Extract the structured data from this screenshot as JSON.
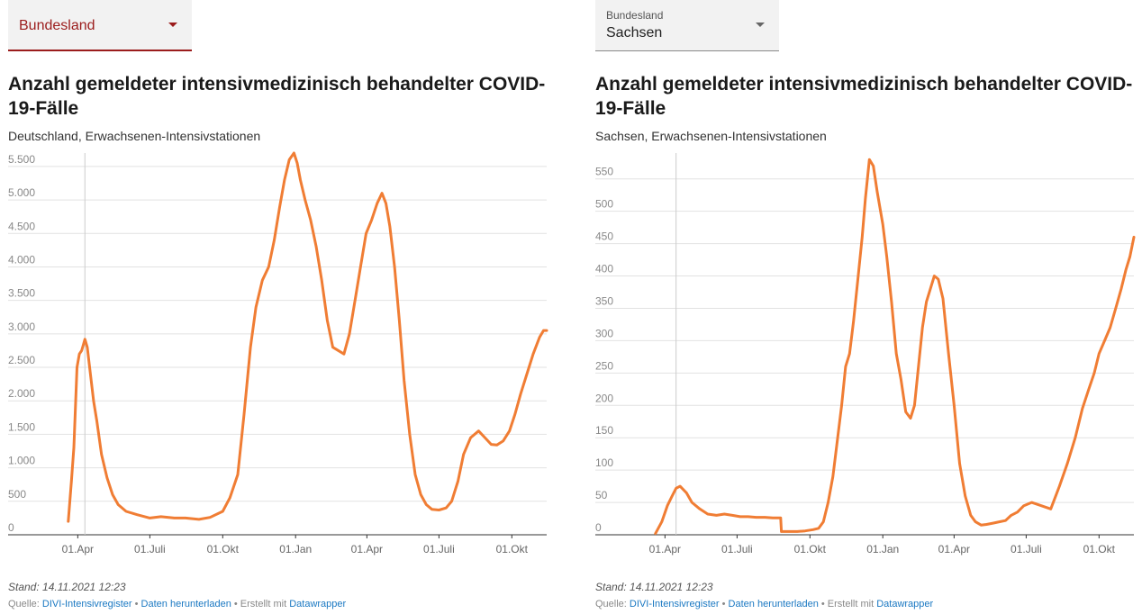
{
  "panels": [
    {
      "dropdown": {
        "label": "Bundesland",
        "value": ""
      },
      "title": "Anzahl gemeldeter intensivmedizinisch behandelter COVID-19-Fälle",
      "subtitle": "Deutschland, Erwachsenen-Intensivstationen",
      "footer": {
        "stand": "Stand: 14.11.2021 12:23",
        "source_prefix": "Quelle: ",
        "source_link": "DIVI-Intensivregister",
        "sep1": " • ",
        "download_link": "Daten herunterladen",
        "sep2": " • Erstellt mit ",
        "tool_link": "Datawrapper"
      }
    },
    {
      "dropdown": {
        "label": "Bundesland",
        "value": "Sachsen"
      },
      "title": "Anzahl gemeldeter intensivmedizinisch behandelter COVID-19-Fälle",
      "subtitle": "Sachsen, Erwachsenen-Intensivstationen",
      "footer": {
        "stand": "Stand: 14.11.2021 12:23",
        "source_prefix": "Quelle: ",
        "source_link": "DIVI-Intensivregister",
        "sep1": " • ",
        "download_link": "Daten herunterladen",
        "sep2": " • Erstellt mit ",
        "tool_link": "Datawrapper"
      }
    }
  ],
  "chart_data": [
    {
      "type": "line",
      "line_color": "#f07d34",
      "x_axis_type": "date",
      "xlim": [
        "2020-03-10",
        "2021-11-14"
      ],
      "ylim": [
        0,
        5700
      ],
      "y_ticks": [
        0,
        500,
        1000,
        1500,
        2000,
        2500,
        3000,
        3500,
        4000,
        4500,
        5000,
        5500
      ],
      "y_tick_labels": [
        "0",
        "500",
        "1.000",
        "1.500",
        "2.000",
        "2.500",
        "3.000",
        "3.500",
        "4.000",
        "4.500",
        "5.000",
        "5.500"
      ],
      "x_ticks": [
        "2020-04-01",
        "2020-07-01",
        "2020-10-01",
        "2021-01-01",
        "2021-04-01",
        "2021-07-01",
        "2021-10-01"
      ],
      "x_tick_labels": [
        "01.Apr",
        "01.Juli",
        "01.Okt",
        "01.Jan",
        "01.Apr",
        "01.Juli",
        "01.Okt"
      ],
      "reference_line_x": "2020-04-10",
      "grid": true,
      "series": [
        {
          "x": [
            "2020-03-20",
            "2020-03-24",
            "2020-03-27",
            "2020-03-31",
            "2020-04-03",
            "2020-04-06",
            "2020-04-10",
            "2020-04-13",
            "2020-04-17",
            "2020-04-21",
            "2020-04-25",
            "2020-05-01",
            "2020-05-08",
            "2020-05-15",
            "2020-05-22",
            "2020-06-01",
            "2020-06-15",
            "2020-07-01",
            "2020-07-15",
            "2020-08-01",
            "2020-08-15",
            "2020-09-01",
            "2020-09-15",
            "2020-10-01",
            "2020-10-10",
            "2020-10-20",
            "2020-10-28",
            "2020-11-05",
            "2020-11-12",
            "2020-11-20",
            "2020-11-28",
            "2020-12-05",
            "2020-12-12",
            "2020-12-18",
            "2020-12-24",
            "2020-12-30",
            "2021-01-03",
            "2021-01-07",
            "2021-01-13",
            "2021-01-20",
            "2021-01-27",
            "2021-02-03",
            "2021-02-10",
            "2021-02-17",
            "2021-02-24",
            "2021-03-03",
            "2021-03-10",
            "2021-03-17",
            "2021-03-24",
            "2021-03-31",
            "2021-04-07",
            "2021-04-14",
            "2021-04-20",
            "2021-04-25",
            "2021-04-30",
            "2021-05-06",
            "2021-05-12",
            "2021-05-18",
            "2021-05-25",
            "2021-06-01",
            "2021-06-08",
            "2021-06-15",
            "2021-06-22",
            "2021-07-01",
            "2021-07-10",
            "2021-07-17",
            "2021-07-25",
            "2021-08-01",
            "2021-08-10",
            "2021-08-20",
            "2021-08-28",
            "2021-09-05",
            "2021-09-12",
            "2021-09-20",
            "2021-09-28",
            "2021-10-05",
            "2021-10-12",
            "2021-10-20",
            "2021-10-28",
            "2021-11-05",
            "2021-11-10",
            "2021-11-14"
          ],
          "values": [
            200,
            800,
            1300,
            2500,
            2700,
            2750,
            2920,
            2800,
            2400,
            2000,
            1700,
            1200,
            850,
            600,
            450,
            350,
            300,
            250,
            270,
            250,
            250,
            230,
            260,
            350,
            550,
            900,
            1800,
            2800,
            3400,
            3800,
            4000,
            4400,
            4900,
            5300,
            5600,
            5700,
            5550,
            5300,
            5000,
            4700,
            4300,
            3800,
            3200,
            2800,
            2750,
            2700,
            3000,
            3500,
            4000,
            4500,
            4700,
            4950,
            5100,
            4950,
            4600,
            4000,
            3200,
            2300,
            1500,
            900,
            600,
            450,
            380,
            370,
            400,
            500,
            800,
            1200,
            1450,
            1550,
            1450,
            1350,
            1340,
            1400,
            1550,
            1800,
            2100,
            2400,
            2700,
            2950,
            3050,
            3050
          ]
        }
      ]
    },
    {
      "type": "line",
      "line_color": "#f07d34",
      "x_axis_type": "date",
      "xlim": [
        "2020-03-10",
        "2021-11-14"
      ],
      "ylim": [
        0,
        590
      ],
      "y_ticks": [
        0,
        50,
        100,
        150,
        200,
        250,
        300,
        350,
        400,
        450,
        500,
        550
      ],
      "y_tick_labels": [
        "0",
        "50",
        "100",
        "150",
        "200",
        "250",
        "300",
        "350",
        "400",
        "450",
        "500",
        "550"
      ],
      "x_ticks": [
        "2020-04-01",
        "2020-07-01",
        "2020-10-01",
        "2021-01-01",
        "2021-04-01",
        "2021-07-01",
        "2021-10-01"
      ],
      "x_tick_labels": [
        "01.Apr",
        "01.Juli",
        "01.Okt",
        "01.Jan",
        "01.Apr",
        "01.Juli",
        "01.Okt"
      ],
      "reference_line_x": "2020-04-15",
      "grid": true,
      "series": [
        {
          "x": [
            "2020-03-20",
            "2020-03-28",
            "2020-04-04",
            "2020-04-10",
            "2020-04-15",
            "2020-04-20",
            "2020-04-28",
            "2020-05-05",
            "2020-05-15",
            "2020-05-25",
            "2020-06-05",
            "2020-06-15",
            "2020-06-25",
            "2020-07-05",
            "2020-07-15",
            "2020-07-25",
            "2020-08-05",
            "2020-08-15",
            "2020-08-25",
            "2020-08-26",
            "2020-09-05",
            "2020-09-15",
            "2020-09-25",
            "2020-10-05",
            "2020-10-12",
            "2020-10-18",
            "2020-10-24",
            "2020-10-30",
            "2020-11-05",
            "2020-11-10",
            "2020-11-15",
            "2020-11-20",
            "2020-11-25",
            "2020-12-01",
            "2020-12-06",
            "2020-12-10",
            "2020-12-15",
            "2020-12-20",
            "2020-12-25",
            "2021-01-01",
            "2021-01-06",
            "2021-01-12",
            "2021-01-18",
            "2021-01-24",
            "2021-01-30",
            "2021-02-05",
            "2021-02-10",
            "2021-02-15",
            "2021-02-20",
            "2021-02-25",
            "2021-03-02",
            "2021-03-07",
            "2021-03-12",
            "2021-03-18",
            "2021-03-25",
            "2021-04-01",
            "2021-04-08",
            "2021-04-15",
            "2021-04-22",
            "2021-04-28",
            "2021-05-05",
            "2021-05-12",
            "2021-05-20",
            "2021-05-28",
            "2021-06-05",
            "2021-06-12",
            "2021-06-20",
            "2021-06-28",
            "2021-07-08",
            "2021-07-20",
            "2021-08-01",
            "2021-08-12",
            "2021-08-22",
            "2021-09-01",
            "2021-09-10",
            "2021-09-18",
            "2021-09-25",
            "2021-10-01",
            "2021-10-08",
            "2021-10-15",
            "2021-10-22",
            "2021-10-29",
            "2021-11-04",
            "2021-11-09",
            "2021-11-14"
          ],
          "values": [
            2,
            20,
            45,
            60,
            72,
            75,
            65,
            50,
            40,
            32,
            30,
            32,
            30,
            28,
            28,
            27,
            27,
            26,
            26,
            5,
            5,
            5,
            6,
            8,
            10,
            20,
            50,
            90,
            150,
            200,
            260,
            280,
            330,
            400,
            460,
            520,
            580,
            570,
            530,
            480,
            430,
            360,
            280,
            240,
            190,
            180,
            200,
            260,
            320,
            360,
            380,
            400,
            395,
            365,
            280,
            200,
            110,
            60,
            30,
            20,
            15,
            16,
            18,
            20,
            22,
            30,
            35,
            45,
            50,
            45,
            40,
            75,
            110,
            150,
            195,
            225,
            250,
            280,
            300,
            320,
            350,
            380,
            410,
            430,
            460
          ]
        }
      ]
    }
  ]
}
